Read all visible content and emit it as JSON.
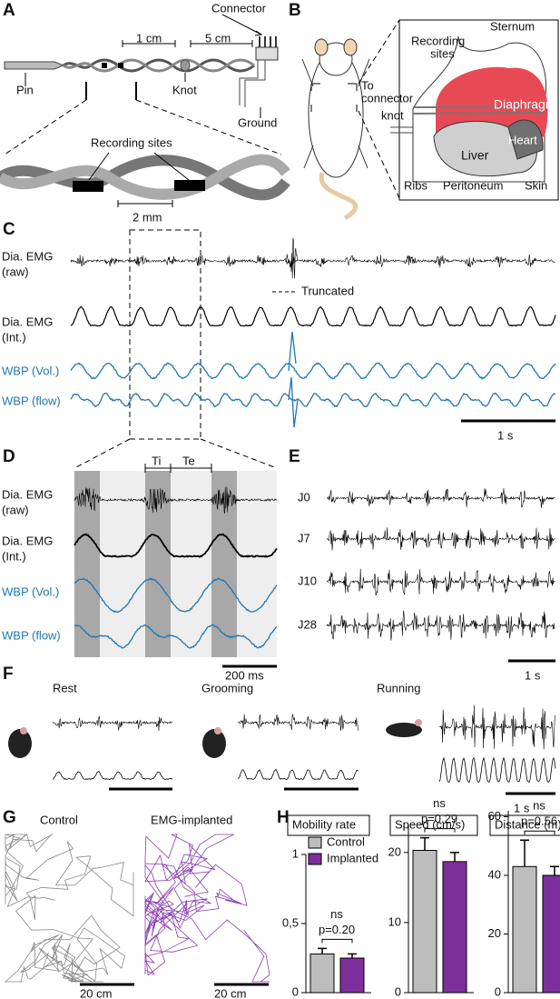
{
  "panels": {
    "labels": [
      "A",
      "B",
      "C",
      "D",
      "E",
      "F",
      "G",
      "H"
    ]
  },
  "panel_a": {
    "connector": "Connector",
    "scale_1": "1 cm",
    "scale_2": "5 cm",
    "pin": "Pin",
    "knot": "Knot",
    "ground": "Ground",
    "recording_sites": "Recording sites",
    "scale_3": "2 mm"
  },
  "panel_b": {
    "sternum": "Sternum",
    "recording_sites_1": "Recording",
    "recording_sites_2": "sites",
    "to_connector_1": "To",
    "to_connector_2": "connector",
    "knot": "knot",
    "diaphragm": "Diaphragm",
    "heart": "Heart",
    "liver": "Liver",
    "ribs": "Ribs",
    "peritoneum": "Peritoneum",
    "skin": "Skin"
  },
  "panel_c": {
    "trace_labels": [
      "Dia. EMG",
      "(raw)",
      "Dia. EMG",
      "(Int.)",
      "WBP (Vol.)",
      "WBP (flow)"
    ],
    "truncated": "Truncated",
    "scale": "1 s"
  },
  "panel_d": {
    "trace_labels": [
      "Dia. EMG",
      "(raw)",
      "Dia. EMG",
      "(Int.)",
      "WBP (Vol.)",
      "WBP (flow)"
    ],
    "ti": "Ti",
    "te": "Te",
    "scale": "200 ms"
  },
  "panel_e": {
    "days": [
      "J0",
      "J7",
      "J10",
      "J28"
    ],
    "scale": "1 s"
  },
  "panel_f": {
    "conditions": [
      "Rest",
      "Grooming",
      "Running"
    ],
    "scale": "1 s"
  },
  "panel_g": {
    "groups": [
      "Control",
      "EMG-implanted"
    ],
    "scales": [
      "20 cm",
      "20 cm"
    ]
  },
  "chart_data": [
    {
      "type": "bar",
      "title": "Mobility rate",
      "ylim": [
        0,
        1
      ],
      "yticks": [
        0,
        {
          "value": 0.5,
          "label": "0,5"
        },
        1
      ],
      "series": [
        {
          "name": "Control",
          "color": "#bdbdbd",
          "values": [
            0.28
          ],
          "errors": [
            0.04
          ]
        },
        {
          "name": "Implanted",
          "color": "#7d2f9b",
          "values": [
            0.25
          ],
          "errors": [
            0.03
          ]
        }
      ],
      "annotations": [
        "ns",
        "p=0.20"
      ]
    },
    {
      "type": "bar",
      "title": "Speed (cm/s)",
      "ylim": [
        0,
        24
      ],
      "yticks": [
        0,
        10,
        20
      ],
      "series": [
        {
          "color": "#bdbdbd",
          "values": [
            20.3
          ],
          "errors": [
            1.8
          ]
        },
        {
          "color": "#7d2f9b",
          "values": [
            18.7
          ],
          "errors": [
            1.3
          ]
        }
      ],
      "annotations": [
        "ns",
        "p=0.29"
      ]
    },
    {
      "type": "bar",
      "title": "Distance (m)",
      "ylim": [
        0,
        62
      ],
      "yticks": [
        0,
        20,
        40,
        60
      ],
      "series": [
        {
          "color": "#bdbdbd",
          "values": [
            43
          ],
          "errors": [
            9
          ]
        },
        {
          "color": "#7d2f9b",
          "values": [
            40
          ],
          "errors": [
            3
          ]
        }
      ],
      "annotations": [
        "ns",
        "p=0.56"
      ]
    }
  ]
}
